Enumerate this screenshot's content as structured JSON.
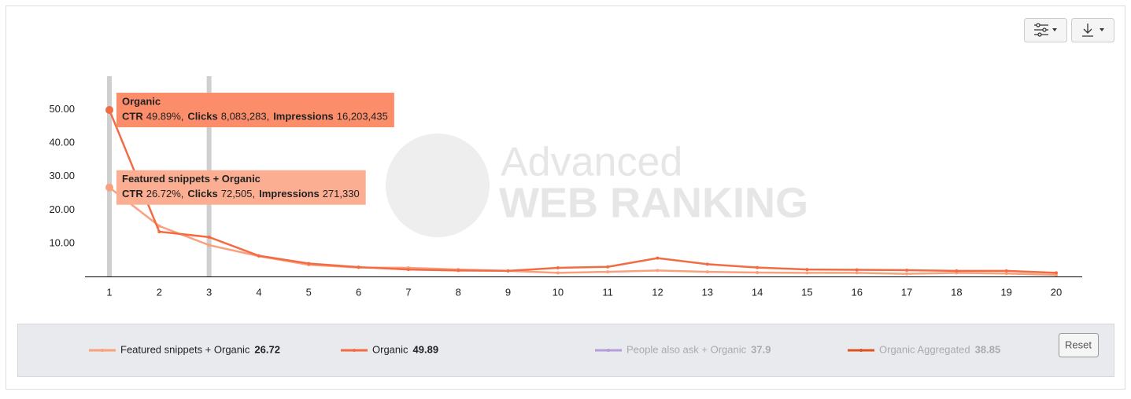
{
  "chart_data": {
    "type": "line",
    "watermark": {
      "line1": "Advanced",
      "line2": "WEB RANKING"
    },
    "categories": [
      "1",
      "2",
      "3",
      "4",
      "5",
      "6",
      "7",
      "8",
      "9",
      "10",
      "11",
      "12",
      "13",
      "14",
      "15",
      "16",
      "17",
      "18",
      "19",
      "20"
    ],
    "highlight": [
      "1",
      "3"
    ],
    "ylim": [
      0,
      60
    ],
    "yticks": [
      {
        "value": 10,
        "label": "10.00"
      },
      {
        "value": 20,
        "label": "20.00"
      },
      {
        "value": 30,
        "label": "30.00"
      },
      {
        "value": 40,
        "label": "40.00"
      },
      {
        "value": 50,
        "label": "50.00"
      }
    ],
    "series": [
      {
        "name": "Featured snippets + Organic",
        "color": "#f9a07f",
        "visible": true,
        "legend_value": 26.72,
        "values": [
          26.72,
          15.2,
          9.5,
          6.2,
          3.6,
          2.8,
          2.7,
          2.2,
          1.8,
          1.2,
          1.5,
          1.9,
          1.5,
          1.3,
          1.2,
          1.2,
          0.9,
          1.2,
          1.0,
          0.6
        ]
      },
      {
        "name": "Organic",
        "color": "#f26b43",
        "visible": true,
        "legend_value": 49.89,
        "values": [
          49.89,
          13.5,
          11.9,
          6.3,
          4.0,
          2.9,
          2.2,
          1.9,
          1.8,
          2.7,
          3.0,
          5.6,
          3.8,
          2.8,
          2.2,
          2.1,
          2.0,
          1.8,
          1.8,
          1.2
        ]
      },
      {
        "name": "People also ask + Organic",
        "color": "#b39ddb",
        "visible": false,
        "legend_value": 37.9
      },
      {
        "name": "Organic Aggregated",
        "color": "#d9541e",
        "visible": false,
        "legend_value": 38.85
      }
    ],
    "tooltips": [
      {
        "series": 1,
        "color": "#fb8d6b",
        "items": [
          {
            "label": "CTR",
            "value": "49.89%,"
          },
          {
            "label": "Clicks",
            "value": "8,083,283,"
          },
          {
            "label": "Impressions",
            "value": "16,203,435"
          }
        ]
      },
      {
        "series": 0,
        "color": "#fcae92",
        "items": [
          {
            "label": "CTR",
            "value": "26.72%,"
          },
          {
            "label": "Clicks",
            "value": "72,505,"
          },
          {
            "label": "Impressions",
            "value": "271,330"
          }
        ]
      }
    ],
    "reset_button": "Reset"
  }
}
